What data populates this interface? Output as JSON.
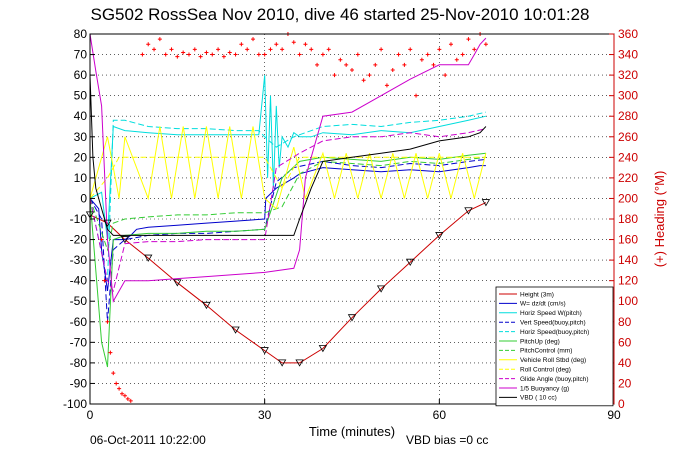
{
  "chart_data": {
    "type": "line",
    "title": "SG502 RossSea Nov 2010, dive 46 started 25-Nov-2010 10:01:28",
    "xlabel": "Time (minutes)",
    "ylabel": "",
    "y2label": "(+) Heading (°M)",
    "xlim": [
      0,
      90
    ],
    "ylim": [
      -100,
      80
    ],
    "y2lim": [
      0,
      360
    ],
    "xticks": [
      "0",
      "30",
      "60",
      "90"
    ],
    "yticks": [
      "-100",
      "-90",
      "-80",
      "-70",
      "-60",
      "-50",
      "-40",
      "-30",
      "-20",
      "-10",
      "0",
      "10",
      "20",
      "30",
      "40",
      "50",
      "60",
      "70",
      "80"
    ],
    "y2ticks": [
      "0",
      "20",
      "40",
      "60",
      "80",
      "100",
      "120",
      "140",
      "160",
      "180",
      "200",
      "220",
      "240",
      "260",
      "280",
      "300",
      "320",
      "340",
      "360"
    ],
    "grid": true,
    "legend_position": "bottom-right",
    "footer_left": "06-Oct-2011 10:22:00",
    "footer_right": "VBD bias =0 cc",
    "colors": {
      "height": "#cc0000",
      "w": "#0000cc",
      "horz": "#00dddd",
      "pitch": "#33cc33",
      "roll": "#ffff00",
      "buoy": "#cc00cc",
      "vbd": "#000000",
      "heading": "#ff0000"
    },
    "legend": [
      "Height (3m)",
      "W= dz/dt (cm/s)",
      "Horiz Speed W(pitch)",
      "Vert Speed(buoy,pitch)",
      "Horiz Speed(buoy,pitch)",
      "PitchUp (deg)",
      "PitchControl (mm)",
      "Vehicle Roll Stbd (deg)",
      "Roll Control (deg)",
      "Glide Angle (buoy,pitch)",
      "1/5 Buoyancy (g)",
      "VBD ( 10 cc)"
    ],
    "series": [
      {
        "name": "Height (3m)",
        "x": [
          0,
          3,
          6,
          10,
          15,
          20,
          25,
          30,
          33,
          36,
          40,
          45,
          50,
          55,
          60,
          65,
          68
        ],
        "y": [
          -8,
          -12,
          -20,
          -29,
          -41,
          -52,
          -64,
          -74,
          -80,
          -80,
          -73,
          -58,
          -44,
          -31,
          -18,
          -6,
          -2
        ]
      },
      {
        "name": "W= dz/dt (cm/s)",
        "x": [
          0,
          1.5,
          2,
          3,
          4,
          6,
          7,
          8,
          10,
          15,
          20,
          25,
          30,
          30.2,
          32,
          35,
          36,
          40,
          45,
          50,
          55,
          60,
          65,
          67,
          68
        ],
        "y": [
          0,
          -5,
          -25,
          -45,
          -20,
          -20,
          -18,
          -15,
          -14,
          -13,
          -12,
          -11,
          -10,
          0,
          5,
          10,
          12,
          15,
          14,
          13,
          14,
          13,
          15,
          16,
          16
        ]
      },
      {
        "name": "Horiz Speed W(pitch)",
        "x": [
          0,
          2,
          3,
          4,
          6,
          10,
          15,
          20,
          25,
          29,
          30,
          30.5,
          31,
          31.5,
          32,
          32.5,
          33,
          34,
          35,
          36,
          38,
          40,
          45,
          50,
          55,
          60,
          65,
          68
        ],
        "y": [
          0,
          3,
          -20,
          35,
          33,
          32,
          31,
          31,
          31,
          31,
          60,
          10,
          50,
          5,
          45,
          15,
          30,
          25,
          32,
          30,
          30,
          32,
          31,
          33,
          32,
          35,
          38,
          40
        ]
      },
      {
        "name": "Vert Speed(buoy,pitch)",
        "x": [
          0,
          2,
          3,
          4,
          6,
          10,
          15,
          20,
          25,
          30,
          32,
          35,
          40,
          45,
          50,
          55,
          60,
          65,
          68
        ],
        "y": [
          0,
          -10,
          -60,
          -25,
          -20,
          -18,
          -17,
          -17,
          -16,
          -15,
          8,
          15,
          18,
          16,
          15,
          17,
          16,
          18,
          19
        ]
      },
      {
        "name": "Horiz Speed(buoy,pitch)",
        "x": [
          0,
          3,
          4,
          6,
          10,
          15,
          20,
          25,
          29,
          30,
          32,
          35,
          40,
          45,
          50,
          55,
          60,
          65,
          68
        ],
        "y": [
          0,
          -40,
          38,
          38,
          35,
          34,
          34,
          33,
          33,
          30,
          25,
          30,
          35,
          36,
          35,
          37,
          38,
          40,
          42
        ]
      },
      {
        "name": "PitchUp (deg)",
        "x": [
          0,
          2,
          3,
          4,
          6,
          10,
          15,
          20,
          25,
          30,
          33,
          36,
          40,
          45,
          50,
          55,
          60,
          65,
          68
        ],
        "y": [
          0,
          -70,
          -82,
          -20,
          -18,
          -17,
          -17,
          -16,
          -16,
          -15,
          10,
          18,
          20,
          19,
          18,
          20,
          19,
          21,
          22
        ]
      },
      {
        "name": "PitchControl (mm)",
        "x": [
          0,
          3,
          4,
          6,
          10,
          15,
          20,
          25,
          30,
          33,
          36,
          40,
          45,
          50,
          55,
          60,
          65,
          68
        ],
        "y": [
          0,
          -25,
          -12,
          -10,
          -9,
          -8,
          -8,
          -7,
          -7,
          -4,
          12,
          18,
          17,
          16,
          18,
          17,
          19,
          20
        ]
      },
      {
        "name": "Vehicle Roll Stbd (deg)",
        "x": [
          0,
          3,
          5,
          6,
          10,
          12,
          14,
          16,
          18,
          20,
          22,
          24,
          26,
          28,
          30,
          32,
          35,
          37,
          40,
          42,
          44,
          46,
          48,
          50,
          52,
          54,
          56,
          58,
          60,
          62,
          64,
          66,
          68
        ],
        "y": [
          0,
          30,
          0,
          30,
          0,
          35,
          0,
          35,
          0,
          35,
          0,
          35,
          0,
          35,
          0,
          -5,
          25,
          0,
          22,
          0,
          22,
          0,
          22,
          0,
          22,
          0,
          22,
          0,
          22,
          0,
          22,
          0,
          22
        ]
      },
      {
        "name": "Roll Control (deg)",
        "x": [
          0,
          3,
          5,
          10,
          15,
          20,
          25,
          30,
          33,
          36,
          40,
          45,
          50,
          55,
          60,
          65,
          68
        ],
        "y": [
          0,
          10,
          20,
          20,
          20,
          20,
          20,
          20,
          5,
          20,
          20,
          20,
          20,
          20,
          20,
          20,
          20
        ]
      },
      {
        "name": "Glide Angle (buoy,pitch)",
        "x": [
          0,
          3,
          4,
          6,
          10,
          15,
          20,
          25,
          30,
          32,
          36,
          40,
          45,
          50,
          55,
          60,
          65,
          68
        ],
        "y": [
          0,
          -40,
          -45,
          -22,
          -21,
          -21,
          -20,
          -20,
          -20,
          15,
          22,
          28,
          30,
          30,
          32,
          30,
          32,
          34
        ]
      },
      {
        "name": "1/5 Buoyancy (g)",
        "x": [
          0,
          1,
          2,
          3,
          4,
          6,
          10,
          15,
          20,
          25,
          30,
          35,
          36,
          37,
          38,
          40,
          45,
          50,
          55,
          60,
          65,
          66,
          67,
          68
        ],
        "y": [
          80,
          62,
          45,
          -20,
          -50,
          -40,
          -40,
          -39,
          -38,
          -37,
          -36,
          -34,
          -25,
          10,
          20,
          40,
          42,
          50,
          58,
          65,
          65,
          70,
          75,
          78
        ]
      },
      {
        "name": "VBD ( 10 cc)",
        "x": [
          0,
          0.5,
          1,
          2,
          3,
          4,
          6,
          10,
          15,
          20,
          25,
          30,
          32,
          35,
          36,
          38,
          40,
          45,
          50,
          55,
          60,
          65,
          67,
          68
        ],
        "y": [
          60,
          20,
          5,
          -5,
          -15,
          -18,
          -18,
          -18,
          -18,
          -18,
          -18,
          -18,
          -18,
          -18,
          -10,
          5,
          18,
          20,
          22,
          24,
          28,
          30,
          32,
          35
        ]
      },
      {
        "name": "(+) Heading",
        "x": [
          2,
          2.5,
          3,
          3.5,
          4,
          4.5,
          5,
          5.5,
          6,
          6.5,
          7,
          9,
          10,
          11,
          12,
          13,
          14,
          15,
          16,
          17,
          18,
          19,
          20,
          21,
          22,
          23,
          24,
          25,
          26,
          27,
          28,
          29,
          30,
          31,
          32,
          33,
          34,
          35,
          36,
          37,
          38,
          39,
          40,
          41,
          42,
          43,
          44,
          45,
          46,
          47,
          48,
          49,
          50,
          51,
          52,
          53,
          54,
          55,
          56,
          57,
          58,
          59,
          60,
          61,
          62,
          63,
          64,
          65,
          66,
          67,
          68
        ],
        "y2": [
          160,
          120,
          80,
          50,
          30,
          20,
          15,
          10,
          8,
          5,
          3,
          340,
          350,
          345,
          355,
          340,
          345,
          338,
          342,
          340,
          345,
          338,
          342,
          340,
          345,
          338,
          342,
          340,
          350,
          345,
          355,
          340,
          340,
          345,
          350,
          345,
          360,
          352,
          340,
          350,
          345,
          330,
          340,
          345,
          320,
          335,
          330,
          325,
          340,
          315,
          320,
          330,
          345,
          310,
          325,
          340,
          330,
          345,
          300,
          335,
          340,
          330,
          345,
          320,
          350,
          335,
          340,
          355,
          345,
          360,
          350
        ]
      }
    ]
  }
}
